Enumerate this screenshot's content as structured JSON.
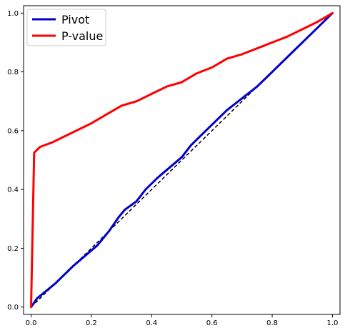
{
  "chart_data": {
    "type": "line",
    "title": "",
    "xlabel": "",
    "ylabel": "",
    "xlim": [
      -0.025,
      1.025
    ],
    "ylim": [
      -0.025,
      1.025
    ],
    "grid": false,
    "legend_placement": "top-left",
    "xticks": [
      {
        "value": 0.0,
        "label": "0.0"
      },
      {
        "value": 0.2,
        "label": "0.2"
      },
      {
        "value": 0.4,
        "label": "0.4"
      },
      {
        "value": 0.6,
        "label": "0.6"
      },
      {
        "value": 0.8,
        "label": "0.8"
      },
      {
        "value": 1.0,
        "label": "1.0"
      }
    ],
    "yticks": [
      {
        "value": 0.0,
        "label": "0.0"
      },
      {
        "value": 0.2,
        "label": "0.2"
      },
      {
        "value": 0.4,
        "label": "0.4"
      },
      {
        "value": 0.6,
        "label": "0.6"
      },
      {
        "value": 0.8,
        "label": "0.8"
      },
      {
        "value": 1.0,
        "label": "1.0"
      }
    ],
    "reference_line": {
      "x": [
        0,
        1
      ],
      "y": [
        0,
        1
      ],
      "color": "#000000",
      "style": "dashed"
    },
    "series": [
      {
        "name": "Pivot",
        "color": "#0000cc",
        "x": [
          0.0,
          0.02,
          0.05,
          0.08,
          0.1,
          0.14,
          0.18,
          0.22,
          0.26,
          0.29,
          0.31,
          0.35,
          0.38,
          0.42,
          0.46,
          0.5,
          0.53,
          0.56,
          0.6,
          0.65,
          0.7,
          0.75,
          0.8,
          0.85,
          0.9,
          0.95,
          1.0
        ],
        "y": [
          0.0,
          0.03,
          0.055,
          0.08,
          0.1,
          0.14,
          0.175,
          0.21,
          0.26,
          0.305,
          0.33,
          0.36,
          0.4,
          0.44,
          0.475,
          0.51,
          0.55,
          0.58,
          0.62,
          0.67,
          0.71,
          0.75,
          0.8,
          0.85,
          0.9,
          0.95,
          1.0
        ]
      },
      {
        "name": "P-value",
        "color": "#ff0000",
        "x": [
          0.0,
          0.01,
          0.03,
          0.07,
          0.1,
          0.15,
          0.2,
          0.25,
          0.3,
          0.35,
          0.4,
          0.45,
          0.5,
          0.55,
          0.6,
          0.65,
          0.7,
          0.75,
          0.8,
          0.85,
          0.9,
          0.95,
          1.0
        ],
        "y": [
          0.0,
          0.525,
          0.545,
          0.56,
          0.575,
          0.6,
          0.625,
          0.655,
          0.685,
          0.7,
          0.725,
          0.75,
          0.765,
          0.795,
          0.815,
          0.845,
          0.86,
          0.88,
          0.9,
          0.92,
          0.945,
          0.97,
          1.0
        ]
      }
    ]
  }
}
